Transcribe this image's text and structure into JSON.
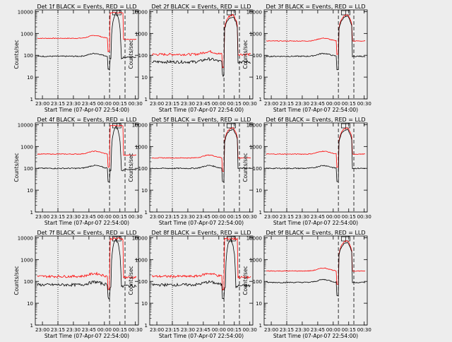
{
  "figure": {
    "background": "#ededed",
    "axis_color": "#000000",
    "events_color": "#000000",
    "lld_color": "#ff0000",
    "xlabel": "Start Time (07-Apr-07 22:54:00)",
    "ylabel": "Counts/sec",
    "x_ticks": [
      "23:00",
      "23:15",
      "23:30",
      "23:45",
      "00:00",
      "00:15",
      "00:30"
    ],
    "y_ticks": [
      "1",
      "10",
      "100",
      "1000",
      "10000"
    ]
  },
  "chart_data": [
    {
      "title": "Det 1f BLACK = Events, RED = LLD",
      "type": "line",
      "scale_y": "log",
      "ylim": [
        1,
        12000
      ],
      "xlim_minutes": [
        -4,
        42
      ],
      "events_level": 90,
      "lld_level": 600,
      "flare": false,
      "markers": [
        27,
        29.5,
        33
      ]
    },
    {
      "title": "Det 2f BLACK = Events, RED = LLD",
      "type": "line",
      "scale_y": "log",
      "ylim": [
        1,
        12000
      ],
      "xlim_minutes": [
        -4,
        42
      ],
      "events_level": 50,
      "lld_level": 110,
      "flare": true,
      "markers": [
        27,
        29.5,
        33
      ]
    },
    {
      "title": "Det 3f BLACK = Events, RED = LLD",
      "type": "line",
      "scale_y": "log",
      "ylim": [
        1,
        12000
      ],
      "xlim_minutes": [
        -4,
        42
      ],
      "events_level": 90,
      "lld_level": 450,
      "flare": true,
      "markers": [
        27,
        29.5,
        33
      ]
    },
    {
      "title": "Det 4f BLACK = Events, RED = LLD",
      "type": "line",
      "scale_y": "log",
      "ylim": [
        1,
        12000
      ],
      "xlim_minutes": [
        -4,
        42
      ],
      "events_level": 100,
      "lld_level": 450,
      "flare": false,
      "markers": [
        27,
        29.5,
        33
      ]
    },
    {
      "title": "Det 5f BLACK = Events, RED = LLD",
      "type": "line",
      "scale_y": "log",
      "ylim": [
        1,
        12000
      ],
      "xlim_minutes": [
        -4,
        42
      ],
      "events_level": 100,
      "lld_level": 300,
      "flare": true,
      "markers": [
        27,
        29.5,
        33
      ]
    },
    {
      "title": "Det 6f BLACK = Events, RED = LLD",
      "type": "line",
      "scale_y": "log",
      "ylim": [
        1,
        12000
      ],
      "xlim_minutes": [
        -4,
        42
      ],
      "events_level": 100,
      "lld_level": 450,
      "flare": true,
      "markers": [
        27,
        29.5,
        33
      ]
    },
    {
      "title": "Det 7f BLACK = Events, RED = LLD",
      "type": "line",
      "scale_y": "log",
      "ylim": [
        1,
        12000
      ],
      "xlim_minutes": [
        -4,
        42
      ],
      "events_level": 70,
      "lld_level": 170,
      "flare": false,
      "markers": [
        27,
        29.5,
        33
      ]
    },
    {
      "title": "Det 8f BLACK = Events, RED = LLD",
      "type": "line",
      "scale_y": "log",
      "ylim": [
        1,
        12000
      ],
      "xlim_minutes": [
        -4,
        42
      ],
      "events_level": 70,
      "lld_level": 170,
      "flare": false,
      "markers": [
        27,
        29.5,
        33
      ]
    },
    {
      "title": "Det 9f BLACK = Events, RED = LLD",
      "type": "line",
      "scale_y": "log",
      "ylim": [
        1,
        12000
      ],
      "xlim_minutes": [
        -4,
        42
      ],
      "events_level": 90,
      "lld_level": 300,
      "flare": true,
      "markers": [
        27,
        29.5,
        33
      ]
    }
  ]
}
